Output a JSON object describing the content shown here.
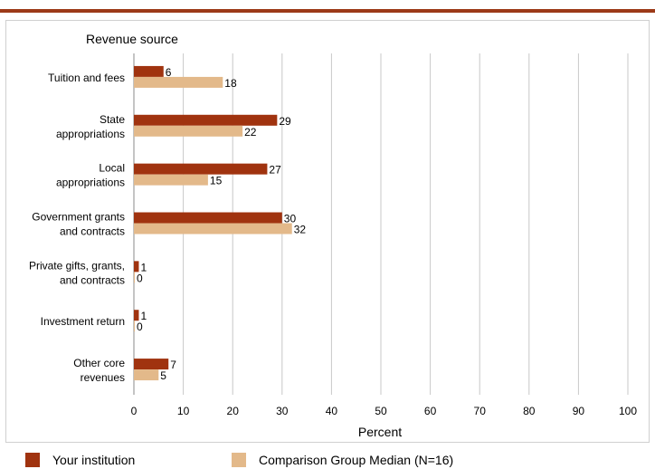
{
  "colors": {
    "your_institution": "#a0330f",
    "comparison": "#e3b98a",
    "accent_bar": "#9c3a18",
    "grid": "#c8c8c8"
  },
  "chart_data": {
    "type": "bar",
    "orientation": "horizontal",
    "ylabel": "Revenue source",
    "xlabel": "Percent",
    "xlim": [
      0,
      100
    ],
    "xticks": [
      0,
      10,
      20,
      30,
      40,
      50,
      60,
      70,
      80,
      90,
      100
    ],
    "grid": true,
    "legend_position": "bottom",
    "categories": [
      [
        "Tuition and fees"
      ],
      [
        "State",
        "appropriations"
      ],
      [
        "Local",
        "appropriations"
      ],
      [
        "Government grants",
        "and contracts"
      ],
      [
        "Private gifts, grants,",
        "and contracts"
      ],
      [
        "Investment return"
      ],
      [
        "Other core",
        "revenues"
      ]
    ],
    "series": [
      {
        "name": "Your institution",
        "values": [
          6,
          29,
          27,
          30,
          1,
          1,
          7
        ]
      },
      {
        "name": "Comparison Group Median (N=16)",
        "values": [
          18,
          22,
          15,
          32,
          0,
          0,
          5
        ]
      }
    ]
  }
}
